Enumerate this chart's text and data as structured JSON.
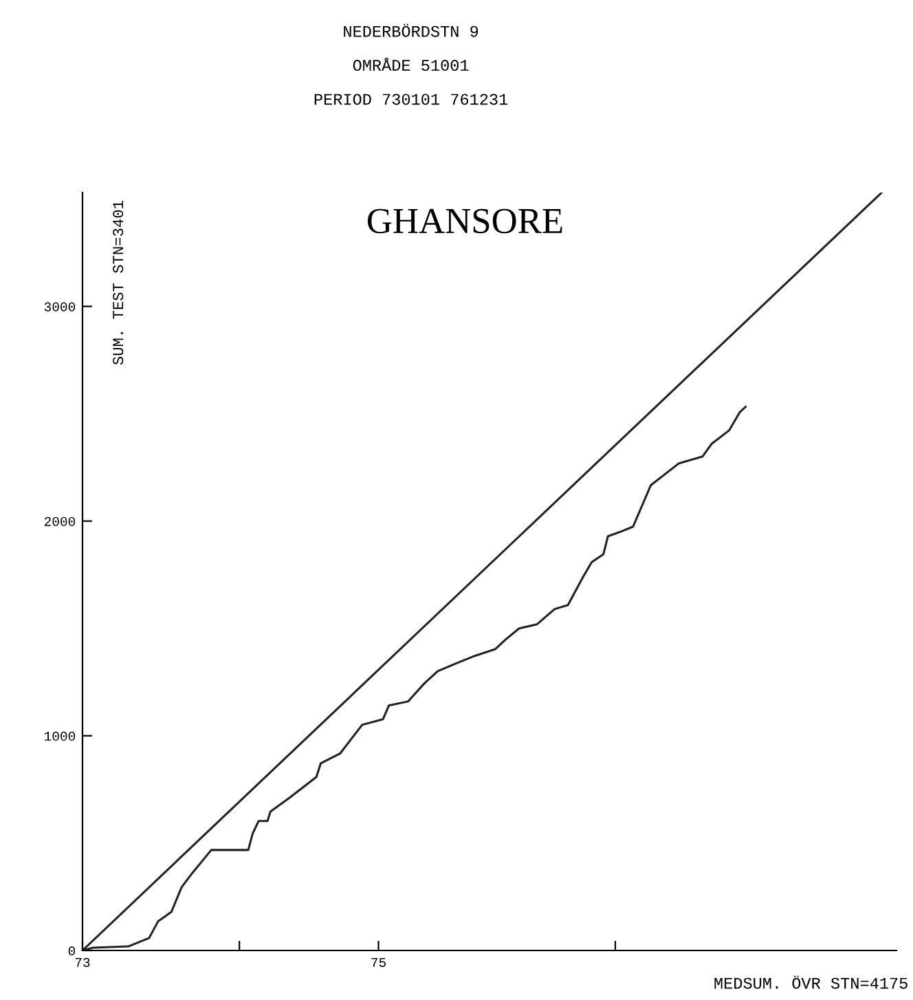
{
  "chart_data": {
    "type": "line",
    "title": "GHANSORE",
    "subtitle": "NEDERBÖRDSTN 9\nOMRÅDE 51001\nPERIOD 730101 761231",
    "xlabel": "MEDSUM. ÖVR STN=4175",
    "ylabel": "SUM. TEST STN=3401",
    "series": [
      {
        "color": "#222222",
        "x": [
          73,
          78.4
        ],
        "values": [
          0,
          3530
        ]
      },
      {
        "color": "#222222",
        "x": [
          73.0,
          73.07,
          73.31,
          73.45,
          73.51,
          73.6,
          73.67,
          73.74,
          73.87,
          74.12,
          74.15,
          74.19,
          74.25,
          74.27,
          74.4,
          74.58,
          74.61,
          74.74,
          74.89,
          75.03,
          75.07,
          75.2,
          75.31,
          75.4,
          75.51,
          75.65,
          75.79,
          75.86,
          75.95,
          76.07,
          76.19,
          76.28,
          76.38,
          76.44,
          76.52,
          76.55,
          76.63,
          76.72,
          76.84,
          77.03,
          77.19,
          77.25,
          77.37,
          77.44,
          77.48
        ],
        "values": [
          0,
          13,
          19,
          58,
          135,
          179,
          295,
          359,
          468,
          468,
          545,
          603,
          603,
          647,
          712,
          808,
          872,
          917,
          1051,
          1077,
          1141,
          1160,
          1244,
          1301,
          1333,
          1372,
          1404,
          1449,
          1500,
          1519,
          1590,
          1609,
          1737,
          1808,
          1846,
          1929,
          1949,
          1974,
          2167,
          2269,
          2301,
          2359,
          2423,
          2506,
          2532
        ]
      }
    ],
    "xlim": [
      73,
      78.5
    ],
    "xticks": [
      73,
      {
        "value": 74.06,
        "label": null
      },
      75,
      {
        "value": 76.6,
        "label": null
      }
    ],
    "ylim": [
      0,
      3530
    ],
    "yticks": [
      0,
      1000,
      2000,
      3000
    ],
    "grid": false,
    "legend": false,
    "marker": "none",
    "line_style": "solid"
  }
}
